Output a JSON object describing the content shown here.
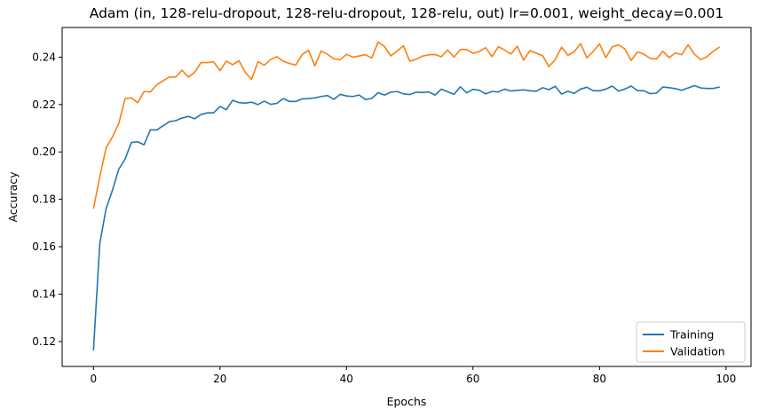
{
  "chart_data": {
    "type": "line",
    "title": "Adam (in, 128-relu-dropout, 128-relu-dropout, 128-relu, out) lr=0.001, weight_decay=0.001",
    "xlabel": "Epochs",
    "ylabel": "Accuracy",
    "xlim": [
      -4.95,
      103.95
    ],
    "ylim": [
      0.1095,
      0.2525
    ],
    "xticks": [
      0,
      20,
      40,
      60,
      80,
      100
    ],
    "xtick_labels": [
      "0",
      "20",
      "40",
      "60",
      "80",
      "100"
    ],
    "yticks": [
      0.12,
      0.14,
      0.16,
      0.18,
      0.2,
      0.22,
      0.24
    ],
    "ytick_labels": [
      "0.12",
      "0.14",
      "0.16",
      "0.18",
      "0.20",
      "0.22",
      "0.24"
    ],
    "grid": false,
    "legend_position": "lower-right",
    "series": [
      {
        "name": "Training",
        "color": "#1f77b4",
        "values": [
          0.1162,
          0.1613,
          0.1761,
          0.1838,
          0.1927,
          0.197,
          0.204,
          0.2043,
          0.203,
          0.2093,
          0.2093,
          0.211,
          0.2128,
          0.2132,
          0.2143,
          0.215,
          0.214,
          0.2158,
          0.2165,
          0.2165,
          0.2192,
          0.2178,
          0.2218,
          0.2208,
          0.2206,
          0.221,
          0.22,
          0.2214,
          0.2201,
          0.2205,
          0.2225,
          0.2213,
          0.2213,
          0.2224,
          0.2225,
          0.2228,
          0.2234,
          0.2238,
          0.2222,
          0.2243,
          0.2236,
          0.2234,
          0.224,
          0.2221,
          0.2226,
          0.225,
          0.224,
          0.2252,
          0.2255,
          0.2245,
          0.2242,
          0.2252,
          0.2251,
          0.2253,
          0.224,
          0.2265,
          0.2254,
          0.2243,
          0.2275,
          0.2249,
          0.2264,
          0.226,
          0.2245,
          0.2255,
          0.2253,
          0.2265,
          0.2257,
          0.226,
          0.2262,
          0.2258,
          0.2256,
          0.2271,
          0.2263,
          0.2277,
          0.2244,
          0.2256,
          0.2247,
          0.2265,
          0.2273,
          0.2258,
          0.2258,
          0.2265,
          0.2278,
          0.2257,
          0.2265,
          0.2278,
          0.2259,
          0.2258,
          0.2246,
          0.2248,
          0.2274,
          0.2271,
          0.2267,
          0.226,
          0.227,
          0.228,
          0.227,
          0.2268,
          0.2268,
          0.2274
        ]
      },
      {
        "name": "Validation",
        "color": "#ff7f0e",
        "values": [
          0.176,
          0.1896,
          0.2017,
          0.2063,
          0.212,
          0.2225,
          0.2228,
          0.2208,
          0.2255,
          0.2253,
          0.2283,
          0.23,
          0.2316,
          0.2316,
          0.2345,
          0.2316,
          0.2336,
          0.2377,
          0.2377,
          0.238,
          0.2343,
          0.2383,
          0.2368,
          0.2385,
          0.2336,
          0.2306,
          0.2381,
          0.2366,
          0.239,
          0.2402,
          0.2383,
          0.2373,
          0.2367,
          0.2411,
          0.2429,
          0.2363,
          0.2426,
          0.2412,
          0.2393,
          0.2389,
          0.2412,
          0.24,
          0.2405,
          0.241,
          0.2396,
          0.2464,
          0.2445,
          0.2405,
          0.2426,
          0.2448,
          0.2383,
          0.2391,
          0.2404,
          0.241,
          0.2411,
          0.2402,
          0.243,
          0.24,
          0.2432,
          0.2432,
          0.2416,
          0.2424,
          0.244,
          0.2402,
          0.2444,
          0.243,
          0.2413,
          0.2446,
          0.2387,
          0.2427,
          0.2417,
          0.2406,
          0.236,
          0.2389,
          0.2442,
          0.2408,
          0.2422,
          0.2457,
          0.2397,
          0.2424,
          0.2456,
          0.2398,
          0.2443,
          0.2452,
          0.2435,
          0.2386,
          0.2422,
          0.2413,
          0.2395,
          0.2392,
          0.2425,
          0.2398,
          0.2418,
          0.241,
          0.2452,
          0.2413,
          0.2389,
          0.2402,
          0.2425,
          0.2443
        ]
      }
    ]
  }
}
